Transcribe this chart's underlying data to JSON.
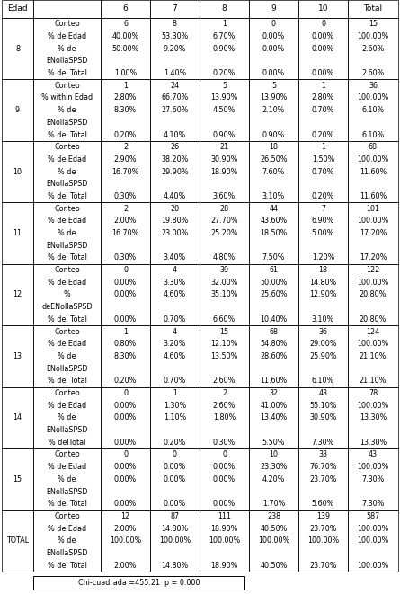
{
  "header_row": [
    "Edad",
    "",
    "6",
    "7",
    "8",
    "9",
    "10",
    "Total"
  ],
  "rows": [
    {
      "edad": "8",
      "labels": [
        "Conteo",
        "% de Edad",
        "% de",
        "ENollaSPSD",
        "% del Total"
      ],
      "values": [
        [
          "6",
          "8",
          "1",
          "0",
          "0",
          "15"
        ],
        [
          "40.00%",
          "53.30%",
          "6.70%",
          "0.00%",
          "0.00%",
          "100.00%"
        ],
        [
          "50.00%",
          "9.20%",
          "0.90%",
          "0.00%",
          "0.00%",
          "2.60%"
        ],
        [
          "1.00%",
          "1.40%",
          "0.20%",
          "0.00%",
          "0.00%",
          "2.60%"
        ]
      ]
    },
    {
      "edad": "9",
      "labels": [
        "Conteo",
        "% within Edad",
        "% de",
        "ENollaSPSD",
        "% del Total"
      ],
      "values": [
        [
          "1",
          "24",
          "5",
          "5",
          "1",
          "36"
        ],
        [
          "2.80%",
          "66.70%",
          "13.90%",
          "13.90%",
          "2.80%",
          "100.00%"
        ],
        [
          "8.30%",
          "27.60%",
          "4.50%",
          "2.10%",
          "0.70%",
          "6.10%"
        ],
        [
          "0.20%",
          "4.10%",
          "0.90%",
          "0.90%",
          "0.20%",
          "6.10%"
        ]
      ]
    },
    {
      "edad": "10",
      "labels": [
        "Conteo",
        "% de Edad",
        "% de",
        "ENollaSPSD",
        "% del Total"
      ],
      "values": [
        [
          "2",
          "26",
          "21",
          "18",
          "1",
          "68"
        ],
        [
          "2.90%",
          "38.20%",
          "30.90%",
          "26.50%",
          "1.50%",
          "100.00%"
        ],
        [
          "16.70%",
          "29.90%",
          "18.90%",
          "7.60%",
          "0.70%",
          "11.60%"
        ],
        [
          "0.30%",
          "4.40%",
          "3.60%",
          "3.10%",
          "0.20%",
          "11.60%"
        ]
      ]
    },
    {
      "edad": "11",
      "labels": [
        "Conteo",
        "% de Edad",
        "% de",
        "ENollaSPSD",
        "% del Total"
      ],
      "values": [
        [
          "2",
          "20",
          "28",
          "44",
          "7",
          "101"
        ],
        [
          "2.00%",
          "19.80%",
          "27.70%",
          "43.60%",
          "6.90%",
          "100.00%"
        ],
        [
          "16.70%",
          "23.00%",
          "25.20%",
          "18.50%",
          "5.00%",
          "17.20%"
        ],
        [
          "0.30%",
          "3.40%",
          "4.80%",
          "7.50%",
          "1.20%",
          "17.20%"
        ]
      ]
    },
    {
      "edad": "12",
      "labels": [
        "Conteo",
        "% de Edad",
        "%",
        "deENollaSPSD",
        "% del Total"
      ],
      "values": [
        [
          "0",
          "4",
          "39",
          "61",
          "18",
          "122"
        ],
        [
          "0.00%",
          "3.30%",
          "32.00%",
          "50.00%",
          "14.80%",
          "100.00%"
        ],
        [
          "0.00%",
          "4.60%",
          "35.10%",
          "25.60%",
          "12.90%",
          "20.80%"
        ],
        [
          "0.00%",
          "0.70%",
          "6.60%",
          "10.40%",
          "3.10%",
          "20.80%"
        ]
      ]
    },
    {
      "edad": "13",
      "labels": [
        "Conteo",
        "% de Edad",
        "% de",
        "ENollaSPSD",
        "% del Total"
      ],
      "values": [
        [
          "1",
          "4",
          "15",
          "68",
          "36",
          "124"
        ],
        [
          "0.80%",
          "3.20%",
          "12.10%",
          "54.80%",
          "29.00%",
          "100.00%"
        ],
        [
          "8.30%",
          "4.60%",
          "13.50%",
          "28.60%",
          "25.90%",
          "21.10%"
        ],
        [
          "0.20%",
          "0.70%",
          "2.60%",
          "11.60%",
          "6.10%",
          "21.10%"
        ]
      ]
    },
    {
      "edad": "14",
      "labels": [
        "Conteo",
        "% de Edad",
        "% de",
        "ENollaSPSD",
        "% delTotal"
      ],
      "values": [
        [
          "0",
          "1",
          "2",
          "32",
          "43",
          "78"
        ],
        [
          "0.00%",
          "1.30%",
          "2.60%",
          "41.00%",
          "55.10%",
          "100.00%"
        ],
        [
          "0.00%",
          "1.10%",
          "1.80%",
          "13.40%",
          "30.90%",
          "13.30%"
        ],
        [
          "0.00%",
          "0.20%",
          "0.30%",
          "5.50%",
          "7.30%",
          "13.30%"
        ]
      ]
    },
    {
      "edad": "15",
      "labels": [
        "Conteo",
        "% de Edad",
        "% de",
        "ENollaSPSD",
        "% del Total"
      ],
      "values": [
        [
          "0",
          "0",
          "0",
          "10",
          "33",
          "43"
        ],
        [
          "0.00%",
          "0.00%",
          "0.00%",
          "23.30%",
          "76.70%",
          "100.00%"
        ],
        [
          "0.00%",
          "0.00%",
          "0.00%",
          "4.20%",
          "23.70%",
          "7.30%"
        ],
        [
          "0.00%",
          "0.00%",
          "0.00%",
          "1.70%",
          "5.60%",
          "7.30%"
        ]
      ]
    },
    {
      "edad": "TOTAL",
      "labels": [
        "Conteo",
        "% de Edad",
        "% de",
        "ENollaSPSD",
        "% del Total"
      ],
      "values": [
        [
          "12",
          "87",
          "111",
          "238",
          "139",
          "587"
        ],
        [
          "2.00%",
          "14.80%",
          "18.90%",
          "40.50%",
          "23.70%",
          "100.00%"
        ],
        [
          "100.00%",
          "100.00%",
          "100.00%",
          "100.00%",
          "100.00%",
          "100.00%"
        ],
        [
          "2.00%",
          "14.80%",
          "18.90%",
          "40.50%",
          "23.70%",
          "100.00%"
        ]
      ]
    }
  ],
  "chi_note": "Chi-cuadrada =455.21  p = 0.000",
  "bg_color": "#ffffff",
  "border_color": "#000000",
  "text_color": "#000000",
  "font_size": 5.8,
  "header_font_size": 6.5
}
